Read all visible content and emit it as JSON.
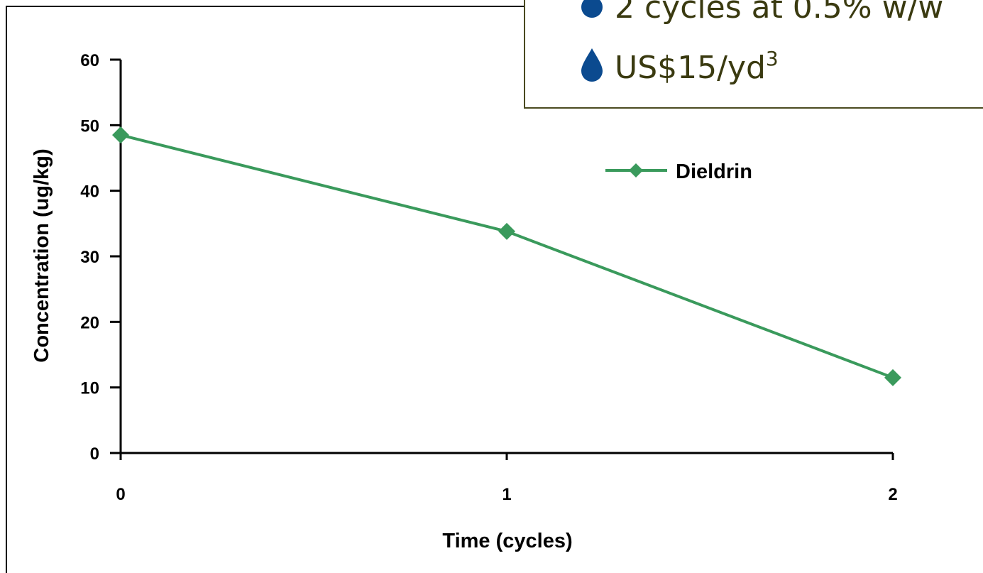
{
  "chart_data": {
    "type": "line",
    "x": [
      0,
      1,
      2
    ],
    "series": [
      {
        "name": "Dieldrin",
        "color": "#3a9a5c",
        "values": [
          48.5,
          33.8,
          11.5
        ]
      }
    ],
    "xlim": [
      0,
      2
    ],
    "xticks": [
      0,
      1,
      2
    ],
    "ylim": [
      0,
      60
    ],
    "yticks": [
      0,
      10,
      20,
      30,
      40,
      50,
      60
    ],
    "x_label": "Time (cycles)",
    "y_label": "Concentration (ug/kg)",
    "legend": "upper right",
    "grid": false
  },
  "callout": {
    "bullets": [
      {
        "text": "2 cycles at 0.5% w/w"
      },
      {
        "text": "US$15/yd",
        "sup": "3"
      }
    ]
  }
}
